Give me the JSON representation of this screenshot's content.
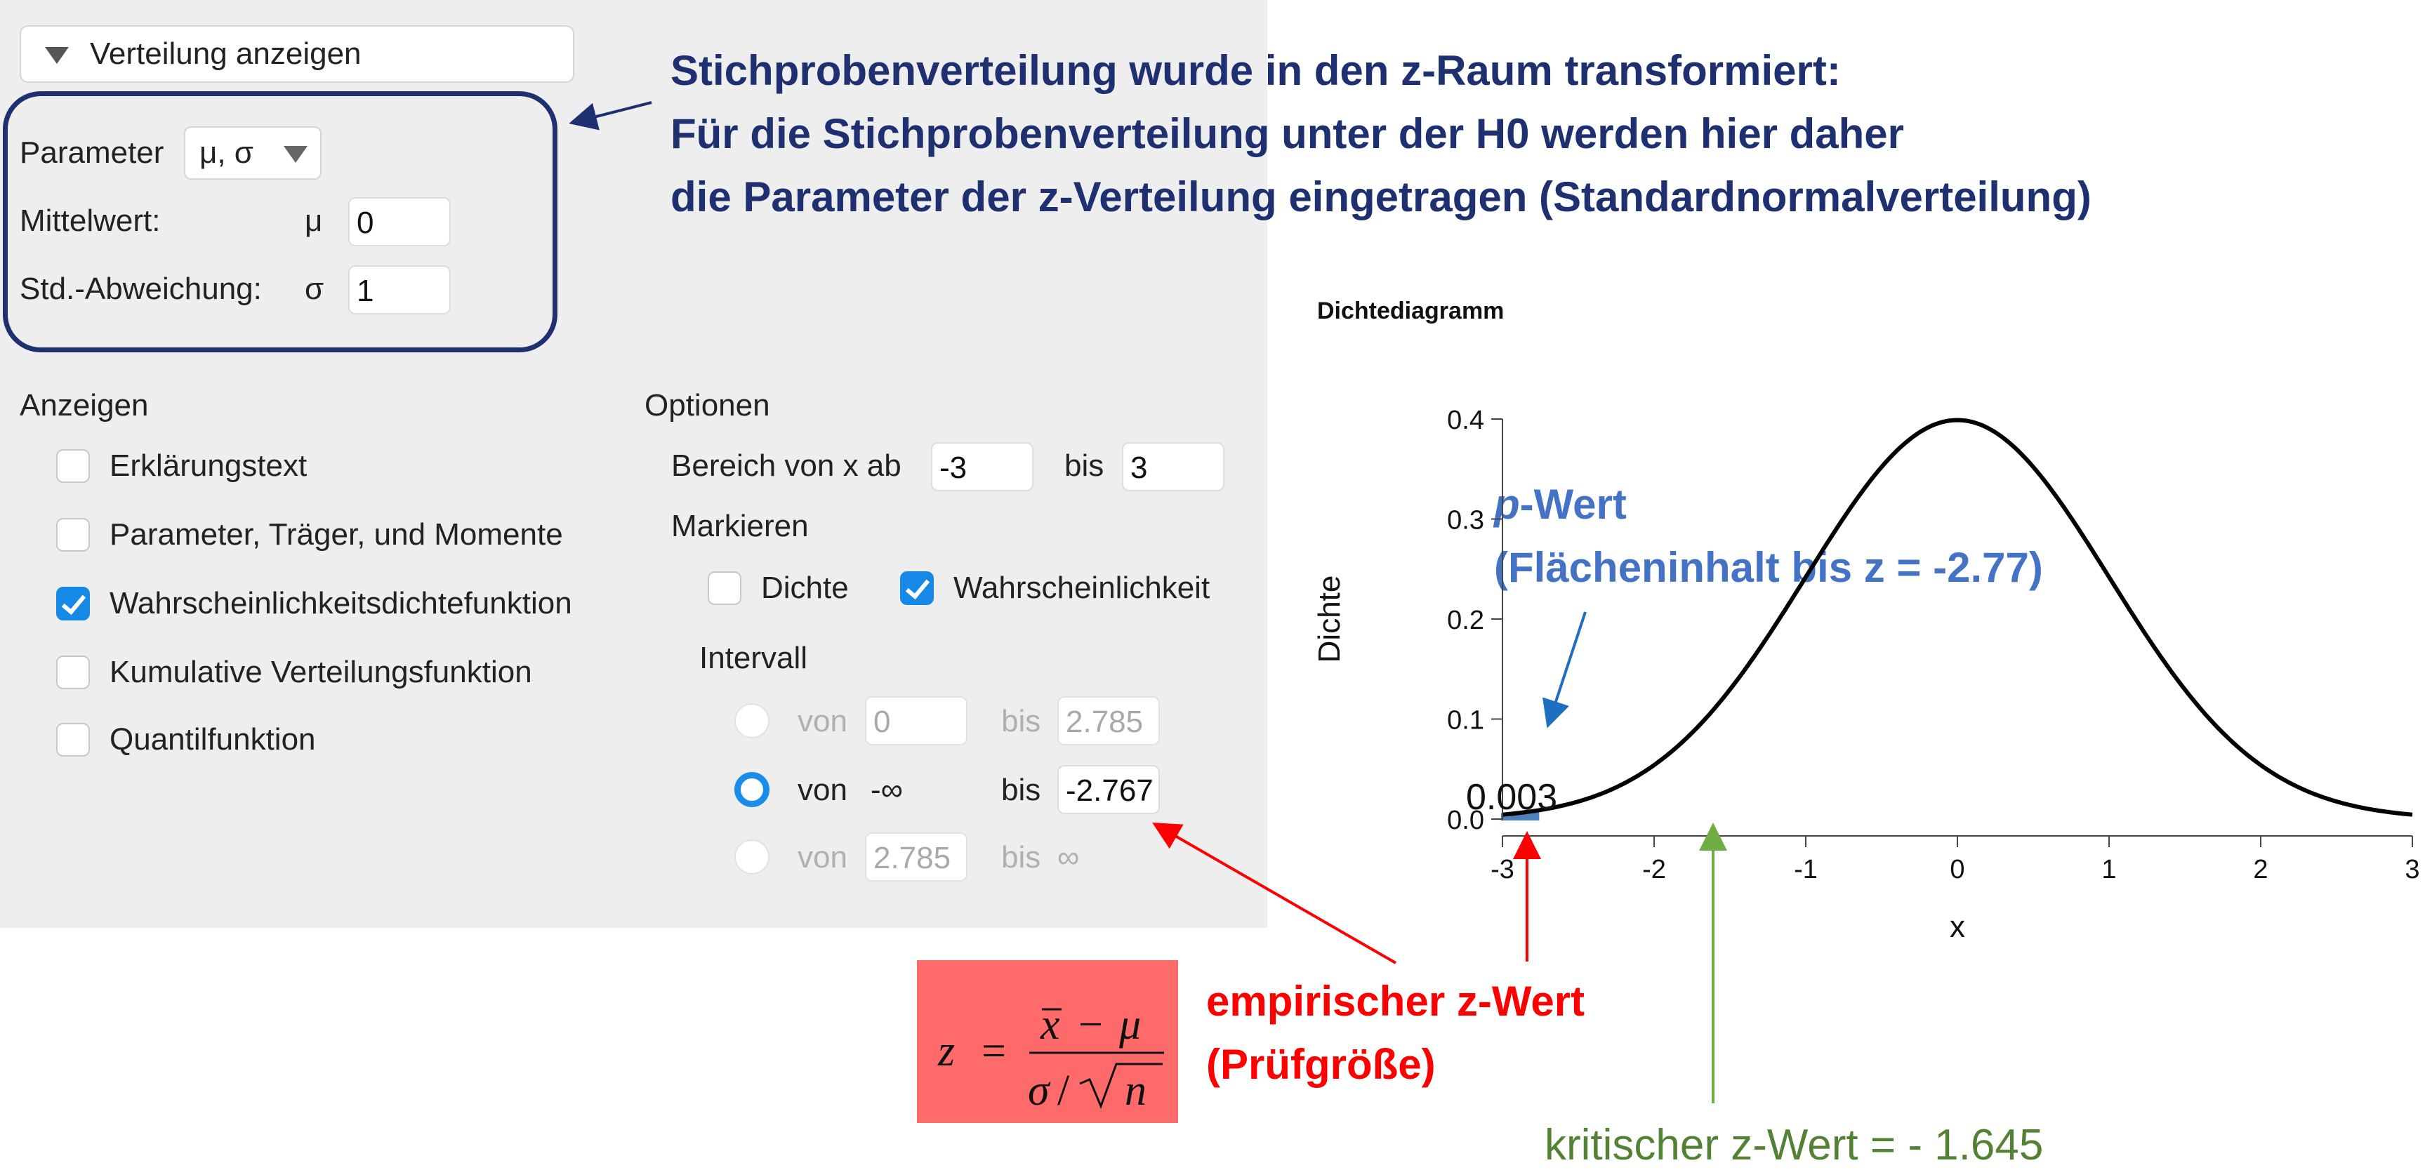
{
  "panel": {
    "toggle_label": "Verteilung anzeigen",
    "parameter_label": "Parameter",
    "parameter_select": "μ, σ",
    "mean_label": "Mittelwert:",
    "mean_symbol": "μ",
    "mean_value": "0",
    "sd_label": "Std.-Abweichung:",
    "sd_symbol": "σ",
    "sd_value": "1",
    "show_heading": "Anzeigen",
    "show_options": [
      {
        "label": "Erklärungstext",
        "checked": false
      },
      {
        "label": "Parameter, Träger, und Momente",
        "checked": false
      },
      {
        "label": "Wahrscheinlichkeitsdichtefunktion",
        "checked": true
      },
      {
        "label": "Kumulative Verteilungsfunktion",
        "checked": false
      },
      {
        "label": "Quantilfunktion",
        "checked": false
      }
    ],
    "options_heading": "Optionen",
    "range_label": "Bereich von x ab",
    "range_from": "-3",
    "range_to_label": "bis",
    "range_to": "3",
    "mark_heading": "Markieren",
    "mark_density": {
      "label": "Dichte",
      "checked": false
    },
    "mark_probability": {
      "label": "Wahrscheinlichkeit",
      "checked": true
    },
    "interval_heading": "Intervall",
    "intervals": [
      {
        "from_label": "von",
        "from": "0",
        "to_label": "bis",
        "to": "2.785",
        "selected": false
      },
      {
        "from_label": "von",
        "from": "-∞",
        "to_label": "bis",
        "to": "-2.767",
        "selected": true
      },
      {
        "from_label": "von",
        "from": "2.785",
        "to_label": "bis",
        "to": "∞",
        "selected": false
      }
    ]
  },
  "annotations": {
    "top_line1": "Stichprobenverteilung wurde in den z-Raum transformiert:",
    "top_line2": "Für die Stichprobenverteilung unter der H0 werden hier daher",
    "top_line3": "die Parameter der z-Verteilung eingetragen (Standardnormalverteilung)",
    "p_italic": "p",
    "p_rest": "-Wert",
    "p_line2": "(Flächeninhalt bis z = -2.77)",
    "empirical_line1": "empirischer z-Wert",
    "empirical_line2": "(Prüfgröße)",
    "critical": "kritischer z-Wert = - 1.645",
    "colors": {
      "navy": "#1f3070",
      "blue": "#4472c4",
      "red": "#ff0000",
      "green": "#548235",
      "formula_bg": "#ff6b6b"
    }
  },
  "chart_data": {
    "type": "area",
    "title": "Dichtediagramm",
    "xlabel": "x",
    "ylabel": "Dichte",
    "xlim": [
      -3,
      3
    ],
    "ylim": [
      0,
      0.4
    ],
    "xticks": [
      -3,
      -2,
      -1,
      0,
      1,
      2,
      3
    ],
    "yticks": [
      "0.0",
      "0.1",
      "0.2",
      "0.3",
      "0.4"
    ],
    "distribution": "normal",
    "mean": 0,
    "sd": 1,
    "shaded_interval": [
      -3,
      -2.767
    ],
    "shaded_label": "0.003",
    "grid": false
  }
}
